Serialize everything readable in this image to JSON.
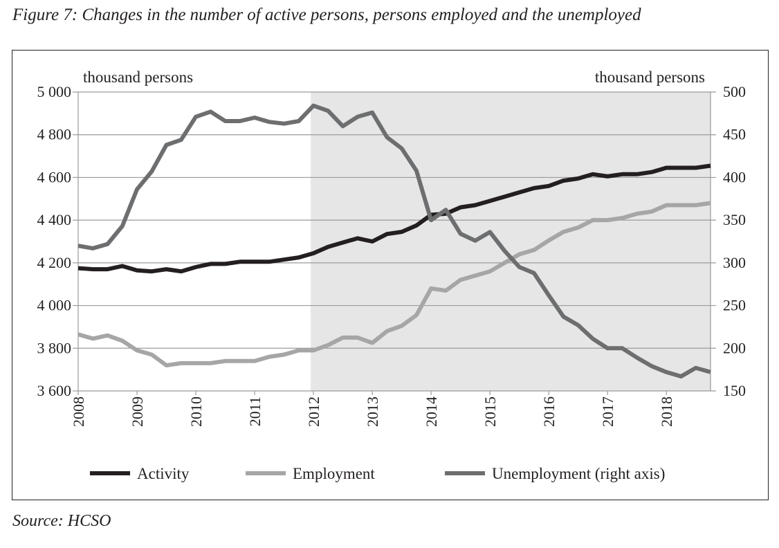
{
  "caption": "Figure 7: Changes in the number of active persons, persons employed and the unemployed",
  "source": "Source: HCSO",
  "chart_data": {
    "type": "line",
    "title": "Figure 7: Changes in the number of active persons, persons employed and the unemployed",
    "left_axis": {
      "label": "thousand persons",
      "range": [
        3600,
        5000
      ],
      "ticks": [
        3600,
        3800,
        4000,
        4200,
        4400,
        4600,
        4800,
        5000
      ],
      "tick_labels": [
        "3 600",
        "3 800",
        "4 000",
        "4 200",
        "4 400",
        "4 600",
        "4 800",
        "5 000"
      ]
    },
    "right_axis": {
      "label": "thousand persons",
      "range": [
        150,
        500
      ],
      "ticks": [
        150,
        200,
        250,
        300,
        350,
        400,
        450,
        500
      ],
      "tick_labels": [
        "150",
        "200",
        "250",
        "300",
        "350",
        "400",
        "450",
        "500"
      ]
    },
    "x_axis": {
      "range": [
        2008,
        2018.75
      ],
      "tick_labels": [
        "2008",
        "2009",
        "2010",
        "2011",
        "2012",
        "2013",
        "2014",
        "2015",
        "2016",
        "2017",
        "2018"
      ],
      "frequency": "quarterly"
    },
    "grid": true,
    "shaded_region": {
      "from": 2012,
      "to": 2018.75,
      "color": "#e6e6e6"
    },
    "legend_position": "bottom",
    "series": [
      {
        "name": "Activity",
        "axis": "left",
        "color": "#231f20",
        "values": [
          4175,
          4170,
          4170,
          4185,
          4165,
          4160,
          4170,
          4160,
          4180,
          4195,
          4195,
          4205,
          4205,
          4205,
          4215,
          4225,
          4245,
          4275,
          4295,
          4315,
          4300,
          4335,
          4345,
          4375,
          4425,
          4430,
          4460,
          4470,
          4490,
          4510,
          4530,
          4550,
          4560,
          4585,
          4595,
          4615,
          4605,
          4615,
          4615,
          4625,
          4645,
          4645,
          4645,
          4655
        ]
      },
      {
        "name": "Employment",
        "axis": "left",
        "color": "#a6a6a6",
        "values": [
          3865,
          3845,
          3860,
          3835,
          3790,
          3770,
          3720,
          3730,
          3730,
          3730,
          3740,
          3740,
          3740,
          3760,
          3770,
          3790,
          3790,
          3815,
          3850,
          3850,
          3825,
          3880,
          3905,
          3955,
          4080,
          4070,
          4120,
          4140,
          4160,
          4200,
          4240,
          4260,
          4305,
          4345,
          4365,
          4400,
          4400,
          4410,
          4430,
          4440,
          4470,
          4470,
          4470,
          4480
        ]
      },
      {
        "name": "Unemployment (right axis)",
        "axis": "right",
        "color": "#6d6e70",
        "values": [
          320,
          317,
          322,
          343,
          386,
          407,
          438,
          444,
          471,
          477,
          466,
          466,
          470,
          465,
          463,
          466,
          484,
          478,
          460,
          471,
          476,
          447,
          434,
          408,
          350,
          362,
          334,
          326,
          336,
          314,
          295,
          288,
          262,
          237,
          227,
          211,
          200,
          200,
          189,
          179,
          172,
          167,
          177,
          172
        ]
      }
    ]
  }
}
